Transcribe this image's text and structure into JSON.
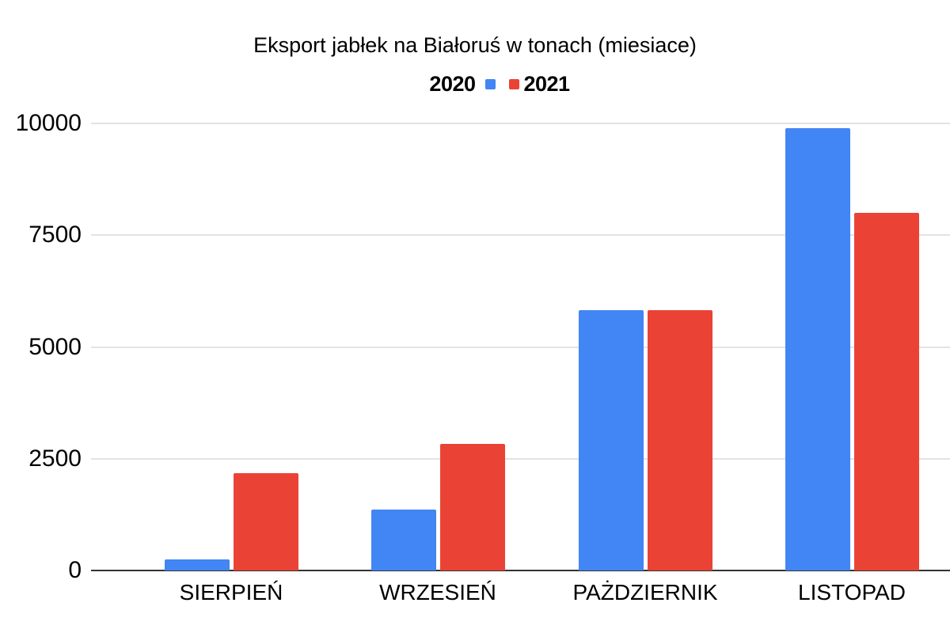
{
  "title": "Eksport jabłek na Białoruś w tonach (miesiace)",
  "legend": {
    "items": [
      {
        "label": "2020",
        "color": "#4285F4"
      },
      {
        "label": "2021",
        "color": "#EA4335"
      }
    ]
  },
  "chart_data": {
    "type": "bar",
    "title": "Eksport jabłek na Białoruś w tonach (miesiace)",
    "categories": [
      "SIERPIEŃ",
      "WRZESIEŃ",
      "PAŻDZIERNIK",
      "LISTOPAD"
    ],
    "series": [
      {
        "name": "2020",
        "color": "#4285F4",
        "values": [
          250,
          1370,
          5830,
          9900
        ]
      },
      {
        "name": "2021",
        "color": "#EA4335",
        "values": [
          2170,
          2840,
          5830,
          8000
        ]
      }
    ],
    "xlabel": "",
    "ylabel": "",
    "ylim": [
      0,
      10000
    ],
    "yticks": [
      0,
      2500,
      5000,
      7500,
      10000
    ],
    "grid": true,
    "legend_position": "top",
    "colors": {
      "background": "#ffffff",
      "gridline": "#e3e3e3",
      "axis": "#333333",
      "text": "#000000"
    }
  }
}
